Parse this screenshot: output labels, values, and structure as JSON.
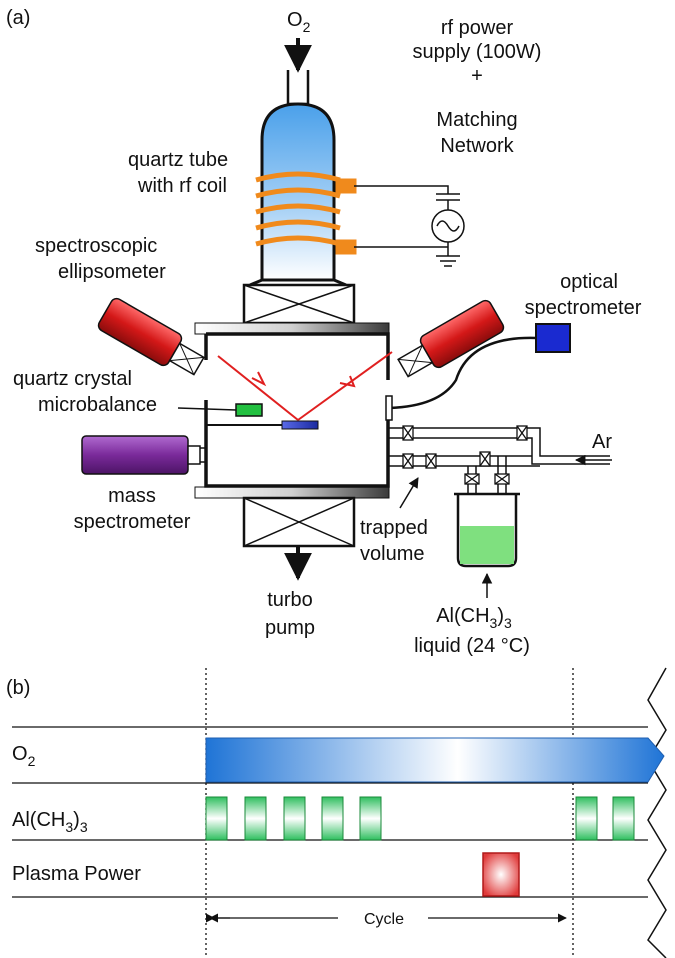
{
  "panel_a": {
    "panel_label": "(a)",
    "o2_inlet": {
      "base": "O",
      "sub": "2"
    },
    "rf_supply": [
      "rf power",
      "supply (100W)",
      "+",
      "Matching",
      "Network"
    ],
    "quartz_tube": [
      "quartz tube",
      "with rf coil"
    ],
    "ellipsometer": [
      "spectroscopic",
      "ellipsometer"
    ],
    "optical_spectrometer": [
      "optical",
      "spectrometer"
    ],
    "qcm": [
      "quartz crystal",
      "microbalance"
    ],
    "mass_spec": [
      "mass",
      "spectrometer"
    ],
    "argon": "Ar",
    "trapped_volume": [
      "trapped",
      "volume"
    ],
    "turbo_pump": [
      "turbo",
      "pump"
    ],
    "precursor": {
      "a": "Al(CH",
      "b": "3",
      "c": ")",
      "d": "3"
    },
    "precursor_state": "liquid (24 °C)"
  },
  "panel_b": {
    "panel_label": "(b)",
    "row_o2": {
      "base": "O",
      "sub": "2"
    },
    "row_tma": {
      "a": "Al(CH",
      "b": "3",
      "c": ")",
      "d": "3"
    },
    "row_plasma": "Plasma Power",
    "cycle_label": "Cycle"
  },
  "colors": {
    "o2_flow": "#2f86e0",
    "tma_pulse": "#2fbf5f",
    "plasma_pulse": "#e03a3a",
    "ellipsometer_body": "#d42020",
    "spectrometer_box": "#1020c8",
    "mass_spec_body": "#7a2a9a",
    "coil": "#f08a1c",
    "laser": "#e02020",
    "precursor_liquid": "#7fe07f"
  }
}
